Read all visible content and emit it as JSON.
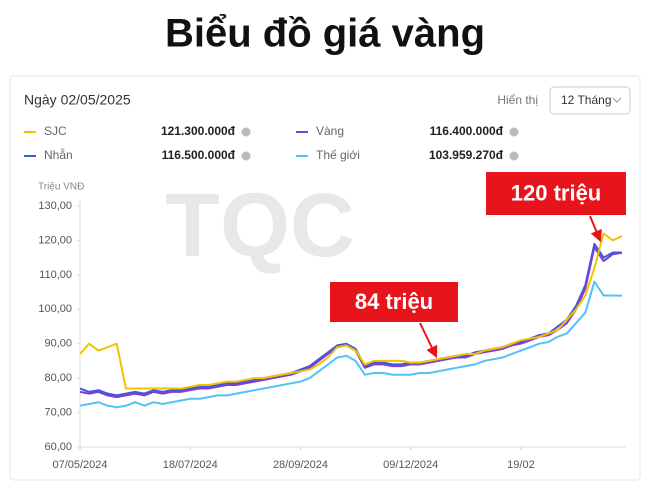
{
  "header": {
    "title": "Biểu đồ giá vàng",
    "date": "Ngày 02/05/2025",
    "display_label": "Hiển thị",
    "period": "12 Tháng"
  },
  "chart_data": {
    "type": "line",
    "watermark": "TQC",
    "y_label": "Triệu VNĐ",
    "categories": [
      "07/05/2024",
      null,
      null,
      null,
      null,
      null,
      null,
      null,
      null,
      null,
      null,
      null,
      "18/07/2024",
      null,
      null,
      null,
      null,
      null,
      null,
      null,
      null,
      null,
      null,
      null,
      "28/09/2024",
      null,
      null,
      null,
      null,
      null,
      null,
      null,
      null,
      null,
      null,
      null,
      "09/12/2024",
      null,
      null,
      null,
      null,
      null,
      null,
      null,
      null,
      null,
      null,
      null,
      "19/02",
      null,
      null,
      null,
      null,
      null,
      null,
      null,
      null,
      null,
      null,
      null
    ],
    "ylim": [
      60,
      130
    ],
    "yticks": [
      {
        "value": 60,
        "label": "60,00"
      },
      {
        "value": 70,
        "label": "70,00"
      },
      {
        "value": 80,
        "label": "80,00"
      },
      {
        "value": 90,
        "label": "90,00"
      },
      {
        "value": 100,
        "label": "100,00"
      },
      {
        "value": 110,
        "label": "110,00"
      },
      {
        "value": 120,
        "label": "120,00"
      },
      {
        "value": 130,
        "label": "130,00"
      }
    ],
    "grid": false,
    "series": [
      {
        "name": "SJC",
        "color": "#f2c200",
        "current_label": "121.300.000đ",
        "values": [
          87,
          90,
          88,
          89,
          90,
          77,
          77,
          77,
          77,
          77,
          77,
          77,
          77.5,
          78,
          78,
          78.5,
          79,
          79,
          79.5,
          80,
          80,
          80.5,
          81,
          81.5,
          82,
          82.5,
          84,
          86,
          89,
          89.5,
          88,
          84,
          85,
          85,
          85,
          85,
          84.5,
          84.5,
          85,
          85.5,
          86,
          86.5,
          87,
          87,
          88,
          88.5,
          89,
          90,
          91,
          91.5,
          92,
          93,
          94,
          97,
          100,
          104,
          112,
          122,
          120,
          121.3
        ]
      },
      {
        "name": "Vàng",
        "color": "#7b3fd6",
        "current_label": "116.400.000đ",
        "values": [
          76,
          75.5,
          76,
          75,
          74.5,
          75,
          75.5,
          75,
          76,
          75.5,
          76,
          76,
          76.5,
          77,
          77,
          77.5,
          78,
          78,
          78.5,
          79,
          79.5,
          80,
          80.5,
          81,
          82,
          83,
          85,
          87,
          89,
          89.5,
          88,
          83,
          84,
          84,
          83.5,
          83.5,
          84,
          84,
          84.5,
          85,
          85.5,
          86,
          86,
          87,
          87.5,
          88,
          88.5,
          89.5,
          90,
          91,
          92,
          92.5,
          94,
          96,
          100,
          106,
          118,
          114,
          116,
          116.4
        ]
      },
      {
        "name": "Nhẫn",
        "color": "#3b5bdb",
        "current_label": "116.500.000đ",
        "values": [
          77,
          76,
          76.5,
          75.5,
          75,
          75.5,
          76,
          75.5,
          76.5,
          76,
          76.5,
          76.5,
          77,
          77.5,
          77.5,
          78,
          78.5,
          78.5,
          79,
          79.5,
          80,
          80.5,
          81,
          81.5,
          82.5,
          83.5,
          85.5,
          87.5,
          89.5,
          90,
          88.5,
          83.5,
          84.5,
          84.5,
          84,
          84,
          84.5,
          84.5,
          85,
          85.5,
          86,
          86.5,
          86.5,
          87.5,
          88,
          88.5,
          89,
          90,
          90.5,
          91.5,
          92.5,
          93,
          95,
          97,
          101,
          107,
          119,
          115,
          116.5,
          116.5
        ]
      },
      {
        "name": "Thế giới",
        "color": "#4fc3f7",
        "current_label": "103.959.270đ",
        "values": [
          72,
          72.5,
          73,
          72,
          71.5,
          72,
          73,
          72,
          73,
          72.5,
          73,
          73.5,
          74,
          74,
          74.5,
          75,
          75,
          75.5,
          76,
          76.5,
          77,
          77.5,
          78,
          78.5,
          79,
          80,
          82,
          84,
          86,
          86.5,
          85,
          81,
          81.5,
          81.5,
          81,
          81,
          81,
          81.5,
          81.5,
          82,
          82.5,
          83,
          83.5,
          84,
          85,
          85.5,
          86,
          87,
          88,
          89,
          90,
          90.5,
          92,
          93,
          96,
          99,
          108,
          104,
          104,
          103.96
        ]
      }
    ],
    "annotations": [
      {
        "text": "120 triệu"
      },
      {
        "text": "84 triệu"
      }
    ]
  }
}
